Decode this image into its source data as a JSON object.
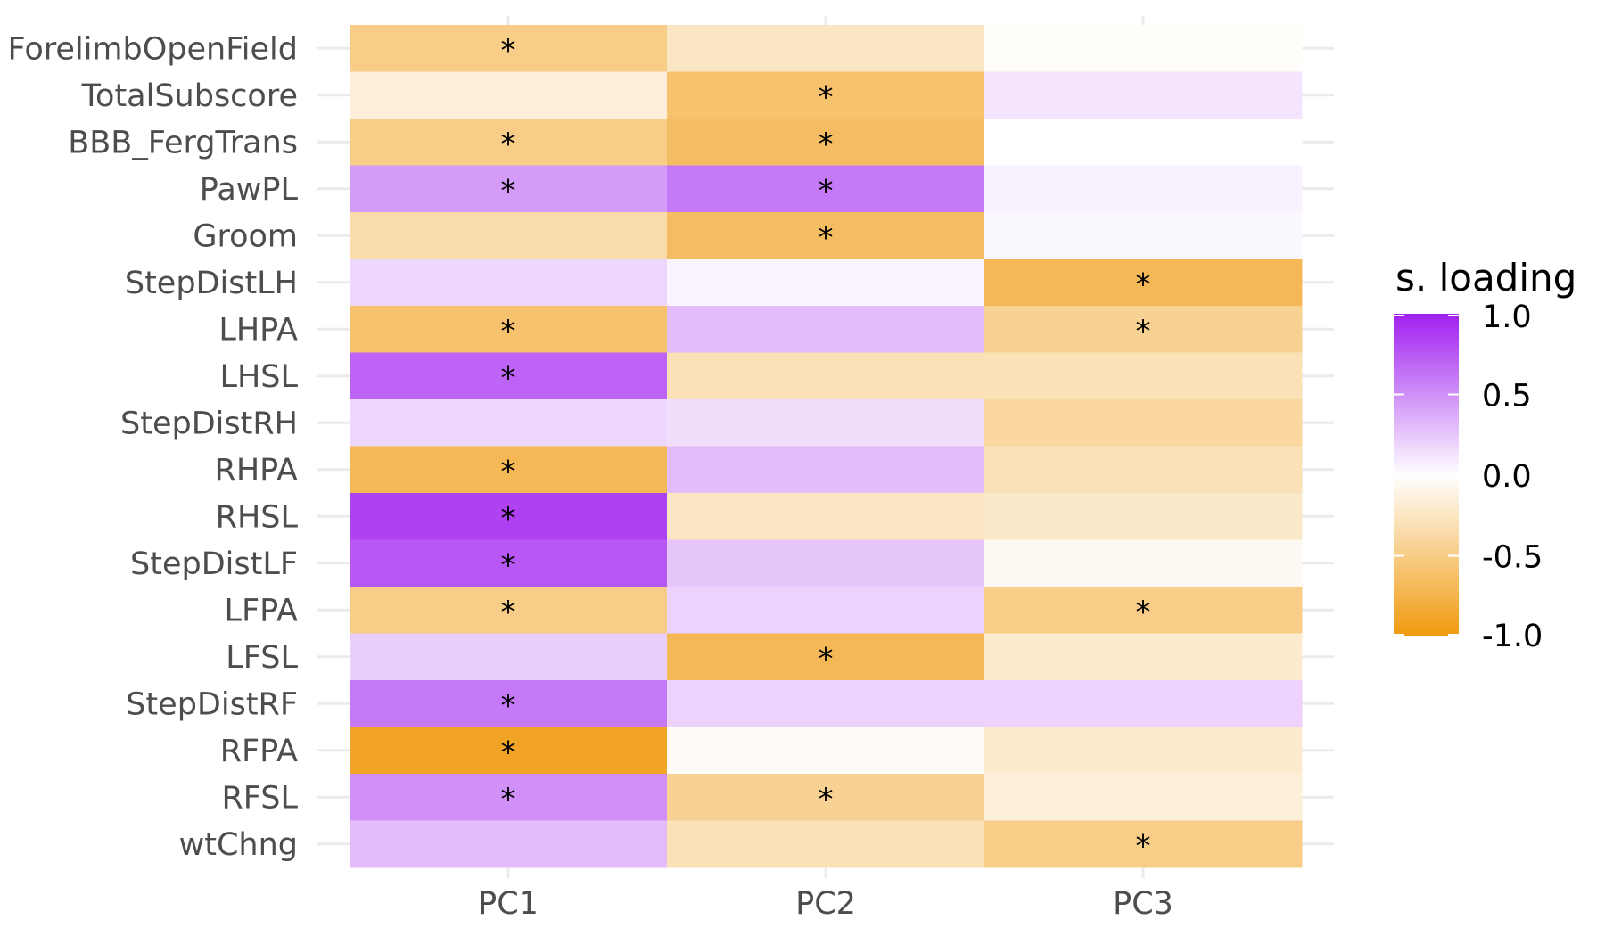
{
  "chart_data": {
    "type": "heatmap",
    "x_categories": [
      "PC1",
      "PC2",
      "PC3"
    ],
    "y_categories": [
      "ForelimbOpenField",
      "TotalSubscore",
      "BBB_FergTrans",
      "PawPL",
      "Groom",
      "StepDistLH",
      "LHPA",
      "LHSL",
      "StepDistRH",
      "RHPA",
      "RHSL",
      "StepDistLF",
      "LFPA",
      "LFSL",
      "StepDistRF",
      "RFPA",
      "RFSL",
      "wtChng"
    ],
    "values": [
      [
        -0.5,
        -0.25,
        -0.02
      ],
      [
        -0.15,
        -0.6,
        0.12
      ],
      [
        -0.5,
        -0.65,
        0.0
      ],
      [
        0.45,
        0.6,
        0.06
      ],
      [
        -0.35,
        -0.65,
        0.03
      ],
      [
        0.18,
        0.05,
        -0.7
      ],
      [
        -0.6,
        0.3,
        -0.45
      ],
      [
        0.7,
        -0.3,
        -0.3
      ],
      [
        0.18,
        0.15,
        -0.4
      ],
      [
        -0.7,
        0.3,
        -0.3
      ],
      [
        0.85,
        -0.25,
        -0.22
      ],
      [
        0.75,
        0.25,
        -0.05
      ],
      [
        -0.5,
        0.2,
        -0.5
      ],
      [
        0.22,
        -0.7,
        -0.2
      ],
      [
        0.6,
        0.2,
        0.2
      ],
      [
        -0.9,
        -0.03,
        -0.2
      ],
      [
        0.5,
        -0.45,
        -0.15
      ],
      [
        0.3,
        -0.3,
        -0.5
      ]
    ],
    "significant": [
      [
        true,
        false,
        false
      ],
      [
        false,
        true,
        false
      ],
      [
        true,
        true,
        false
      ],
      [
        true,
        true,
        false
      ],
      [
        false,
        true,
        false
      ],
      [
        false,
        false,
        true
      ],
      [
        true,
        false,
        true
      ],
      [
        true,
        false,
        false
      ],
      [
        false,
        false,
        false
      ],
      [
        true,
        false,
        false
      ],
      [
        true,
        false,
        false
      ],
      [
        true,
        false,
        false
      ],
      [
        true,
        false,
        true
      ],
      [
        false,
        true,
        false
      ],
      [
        true,
        false,
        false
      ],
      [
        true,
        false,
        false
      ],
      [
        true,
        true,
        false
      ],
      [
        false,
        false,
        true
      ]
    ],
    "significance_marker": "*",
    "legend": {
      "title": "s. loading",
      "ticks": [
        "1.0",
        "0.5",
        "0.0",
        "-0.5",
        "-1.0"
      ],
      "range": [
        -1.0,
        1.0
      ],
      "placement": "right"
    },
    "colors": {
      "low": "#f09a0e",
      "mid": "#ffffff",
      "high": "#a020f0",
      "grid": "#ebebeb",
      "axis_text": "#4d4d4d"
    },
    "grid": true
  }
}
